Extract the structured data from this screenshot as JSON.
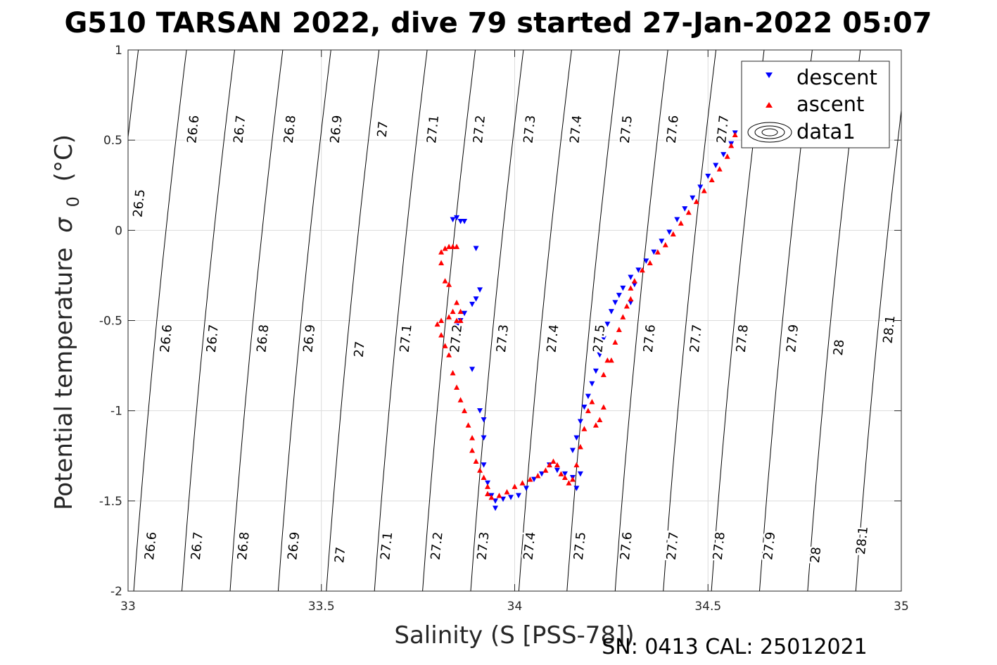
{
  "chart_data": {
    "type": "scatter",
    "title": "G510 TARSAN 2022, dive 79 started 27-Jan-2022 05:07",
    "xlabel": "Salinity (S [PSS-78])",
    "ylabel": "Potential temperature",
    "ylabel_sym": "σ",
    "ylabel_sub": "0",
    "ylabel_unit": "(°C)",
    "xlim": [
      33,
      35
    ],
    "ylim": [
      -2,
      1
    ],
    "xticks": [
      33,
      33.5,
      34,
      34.5,
      35
    ],
    "xtick_labels": [
      "33",
      "33.5",
      "34",
      "34.5",
      "35"
    ],
    "yticks": [
      -2,
      -1.5,
      -1,
      -0.5,
      0,
      0.5,
      1
    ],
    "ytick_labels": [
      "-2",
      "-1.5",
      "-1",
      "-0.5",
      "0",
      "0.5",
      "1"
    ],
    "grid": true,
    "legend_position": "top-right",
    "legend": [
      "descent",
      "ascent",
      "data1"
    ],
    "footer": "SN: 0413  CAL: 25012021",
    "density_contours": {
      "levels": [
        26.5,
        26.6,
        26.7,
        26.8,
        26.9,
        27,
        27.1,
        27.2,
        27.3,
        27.4,
        27.5,
        27.6,
        27.7,
        27.8,
        27.9,
        28,
        28.1
      ],
      "labels": [
        {
          "t": "26.5",
          "x": 33.03,
          "y": 0.15
        },
        {
          "t": "26.6",
          "x": 33.17,
          "y": 0.56
        },
        {
          "t": "26.7",
          "x": 33.29,
          "y": 0.56
        },
        {
          "t": "26.8",
          "x": 33.42,
          "y": 0.56
        },
        {
          "t": "26.9",
          "x": 33.54,
          "y": 0.56
        },
        {
          "t": "27",
          "x": 33.66,
          "y": 0.56
        },
        {
          "t": "27.1",
          "x": 33.79,
          "y": 0.56
        },
        {
          "t": "27.2",
          "x": 33.91,
          "y": 0.56
        },
        {
          "t": "27.3",
          "x": 34.04,
          "y": 0.56
        },
        {
          "t": "27.4",
          "x": 34.16,
          "y": 0.56
        },
        {
          "t": "27.5",
          "x": 34.29,
          "y": 0.56
        },
        {
          "t": "27.6",
          "x": 34.41,
          "y": 0.56
        },
        {
          "t": "27.7",
          "x": 34.54,
          "y": 0.56
        },
        {
          "t": "26.6",
          "x": 33.1,
          "y": -0.6
        },
        {
          "t": "26.7",
          "x": 33.22,
          "y": -0.6
        },
        {
          "t": "26.8",
          "x": 33.35,
          "y": -0.6
        },
        {
          "t": "26.9",
          "x": 33.47,
          "y": -0.6
        },
        {
          "t": "27",
          "x": 33.6,
          "y": -0.66
        },
        {
          "t": "27.1",
          "x": 33.72,
          "y": -0.6
        },
        {
          "t": "27.2",
          "x": 33.85,
          "y": -0.6
        },
        {
          "t": "27.3",
          "x": 33.97,
          "y": -0.6
        },
        {
          "t": "27.4",
          "x": 34.1,
          "y": -0.6
        },
        {
          "t": "27.5",
          "x": 34.22,
          "y": -0.6
        },
        {
          "t": "27.6",
          "x": 34.35,
          "y": -0.6
        },
        {
          "t": "27.7",
          "x": 34.47,
          "y": -0.6
        },
        {
          "t": "27.8",
          "x": 34.59,
          "y": -0.6
        },
        {
          "t": "27.9",
          "x": 34.72,
          "y": -0.6
        },
        {
          "t": "28",
          "x": 34.84,
          "y": -0.65
        },
        {
          "t": "28.1",
          "x": 34.97,
          "y": -0.55
        },
        {
          "t": "26.6",
          "x": 33.06,
          "y": -1.75
        },
        {
          "t": "26.7",
          "x": 33.18,
          "y": -1.75
        },
        {
          "t": "26.8",
          "x": 33.3,
          "y": -1.75
        },
        {
          "t": "26.9",
          "x": 33.43,
          "y": -1.75
        },
        {
          "t": "27",
          "x": 33.55,
          "y": -1.8
        },
        {
          "t": "27.1",
          "x": 33.67,
          "y": -1.75
        },
        {
          "t": "27.2",
          "x": 33.8,
          "y": -1.75
        },
        {
          "t": "27.3",
          "x": 33.92,
          "y": -1.75
        },
        {
          "t": "27.4",
          "x": 34.04,
          "y": -1.75
        },
        {
          "t": "27.5",
          "x": 34.17,
          "y": -1.75
        },
        {
          "t": "27.6",
          "x": 34.29,
          "y": -1.75
        },
        {
          "t": "27.7",
          "x": 34.41,
          "y": -1.75
        },
        {
          "t": "27.8",
          "x": 34.53,
          "y": -1.75
        },
        {
          "t": "27.9",
          "x": 34.66,
          "y": -1.75
        },
        {
          "t": "28",
          "x": 34.78,
          "y": -1.8
        },
        {
          "t": "28.1",
          "x": 34.9,
          "y": -1.72
        }
      ]
    },
    "series": [
      {
        "name": "descent",
        "marker": "triangle-down",
        "color": "#0000ff",
        "points": [
          [
            33.84,
            0.06
          ],
          [
            33.85,
            0.07
          ],
          [
            33.86,
            0.05
          ],
          [
            33.87,
            0.05
          ],
          [
            33.9,
            -0.1
          ],
          [
            33.91,
            -0.33
          ],
          [
            33.9,
            -0.38
          ],
          [
            33.89,
            -0.41
          ],
          [
            33.87,
            -0.46
          ],
          [
            33.86,
            -0.5
          ],
          [
            33.85,
            -0.53
          ],
          [
            33.86,
            -0.56
          ],
          [
            33.89,
            -0.77
          ],
          [
            33.91,
            -1.0
          ],
          [
            33.92,
            -1.05
          ],
          [
            33.92,
            -1.15
          ],
          [
            33.92,
            -1.3
          ],
          [
            33.93,
            -1.4
          ],
          [
            33.94,
            -1.47
          ],
          [
            33.95,
            -1.5
          ],
          [
            33.95,
            -1.54
          ],
          [
            33.97,
            -1.49
          ],
          [
            33.99,
            -1.48
          ],
          [
            34.01,
            -1.47
          ],
          [
            34.03,
            -1.43
          ],
          [
            34.05,
            -1.38
          ],
          [
            34.07,
            -1.35
          ],
          [
            34.09,
            -1.3
          ],
          [
            34.11,
            -1.33
          ],
          [
            34.13,
            -1.35
          ],
          [
            34.15,
            -1.37
          ],
          [
            34.16,
            -1.43
          ],
          [
            34.17,
            -1.35
          ],
          [
            34.15,
            -1.22
          ],
          [
            34.16,
            -1.15
          ],
          [
            34.17,
            -1.06
          ],
          [
            34.18,
            -0.98
          ],
          [
            34.19,
            -0.92
          ],
          [
            34.2,
            -0.85
          ],
          [
            34.21,
            -0.78
          ],
          [
            34.22,
            -0.69
          ],
          [
            34.23,
            -0.6
          ],
          [
            34.24,
            -0.52
          ],
          [
            34.25,
            -0.45
          ],
          [
            34.26,
            -0.4
          ],
          [
            34.27,
            -0.36
          ],
          [
            34.28,
            -0.32
          ],
          [
            34.3,
            -0.26
          ],
          [
            34.31,
            -0.3
          ],
          [
            34.3,
            -0.4
          ],
          [
            34.32,
            -0.22
          ],
          [
            34.34,
            -0.17
          ],
          [
            34.36,
            -0.12
          ],
          [
            34.38,
            -0.06
          ],
          [
            34.4,
            -0.01
          ],
          [
            34.42,
            0.06
          ],
          [
            34.44,
            0.12
          ],
          [
            34.46,
            0.18
          ],
          [
            34.48,
            0.24
          ],
          [
            34.5,
            0.3
          ],
          [
            34.52,
            0.36
          ],
          [
            34.54,
            0.42
          ],
          [
            34.56,
            0.48
          ],
          [
            34.57,
            0.54
          ]
        ]
      },
      {
        "name": "ascent",
        "marker": "triangle-up",
        "color": "#ff0000",
        "points": [
          [
            33.81,
            -0.12
          ],
          [
            33.82,
            -0.1
          ],
          [
            33.83,
            -0.09
          ],
          [
            33.84,
            -0.09
          ],
          [
            33.85,
            -0.09
          ],
          [
            33.81,
            -0.18
          ],
          [
            33.82,
            -0.28
          ],
          [
            33.83,
            -0.3
          ],
          [
            33.84,
            -0.45
          ],
          [
            33.85,
            -0.4
          ],
          [
            33.85,
            -0.5
          ],
          [
            33.86,
            -0.5
          ],
          [
            33.86,
            -0.45
          ],
          [
            33.83,
            -0.48
          ],
          [
            33.81,
            -0.5
          ],
          [
            33.8,
            -0.52
          ],
          [
            33.81,
            -0.58
          ],
          [
            33.82,
            -0.64
          ],
          [
            33.83,
            -0.69
          ],
          [
            33.84,
            -0.79
          ],
          [
            33.85,
            -0.87
          ],
          [
            33.86,
            -0.94
          ],
          [
            33.87,
            -1.0
          ],
          [
            33.88,
            -1.08
          ],
          [
            33.89,
            -1.15
          ],
          [
            33.89,
            -1.22
          ],
          [
            33.9,
            -1.28
          ],
          [
            33.91,
            -1.33
          ],
          [
            33.92,
            -1.37
          ],
          [
            33.93,
            -1.42
          ],
          [
            33.93,
            -1.46
          ],
          [
            33.94,
            -1.48
          ],
          [
            33.96,
            -1.47
          ],
          [
            33.98,
            -1.45
          ],
          [
            34.0,
            -1.42
          ],
          [
            34.02,
            -1.4
          ],
          [
            34.04,
            -1.38
          ],
          [
            34.06,
            -1.36
          ],
          [
            34.08,
            -1.33
          ],
          [
            34.09,
            -1.3
          ],
          [
            34.1,
            -1.28
          ],
          [
            34.11,
            -1.3
          ],
          [
            34.12,
            -1.35
          ],
          [
            34.13,
            -1.37
          ],
          [
            34.14,
            -1.4
          ],
          [
            34.15,
            -1.38
          ],
          [
            34.16,
            -1.3
          ],
          [
            34.17,
            -1.2
          ],
          [
            34.18,
            -1.1
          ],
          [
            34.19,
            -1.0
          ],
          [
            34.2,
            -0.95
          ],
          [
            34.21,
            -1.08
          ],
          [
            34.22,
            -1.05
          ],
          [
            34.23,
            -0.98
          ],
          [
            34.23,
            -0.8
          ],
          [
            34.24,
            -0.72
          ],
          [
            34.25,
            -0.72
          ],
          [
            34.26,
            -0.62
          ],
          [
            34.27,
            -0.55
          ],
          [
            34.28,
            -0.48
          ],
          [
            34.29,
            -0.42
          ],
          [
            34.3,
            -0.38
          ],
          [
            34.3,
            -0.32
          ],
          [
            34.31,
            -0.28
          ],
          [
            34.33,
            -0.22
          ],
          [
            34.35,
            -0.18
          ],
          [
            34.37,
            -0.12
          ],
          [
            34.39,
            -0.08
          ],
          [
            34.41,
            -0.02
          ],
          [
            34.43,
            0.04
          ],
          [
            34.45,
            0.1
          ],
          [
            34.47,
            0.16
          ],
          [
            34.49,
            0.22
          ],
          [
            34.51,
            0.28
          ],
          [
            34.53,
            0.34
          ],
          [
            34.55,
            0.41
          ],
          [
            34.56,
            0.47
          ],
          [
            34.57,
            0.53
          ]
        ]
      }
    ]
  }
}
